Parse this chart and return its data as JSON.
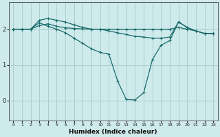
{
  "xlabel": "Humidex (Indice chaleur)",
  "ylabel": "",
  "background_color": "#ceeaea",
  "grid_color": "#aacfcf",
  "line_color": "#1a6b6b",
  "xlim": [
    -0.5,
    23.5
  ],
  "ylim": [
    -0.55,
    2.75
  ],
  "yticks": [
    0,
    1,
    2
  ],
  "xticks": [
    0,
    1,
    2,
    3,
    4,
    5,
    6,
    7,
    8,
    9,
    10,
    11,
    12,
    13,
    14,
    15,
    16,
    17,
    18,
    19,
    20,
    21,
    22,
    23
  ],
  "line1_x": [
    0,
    1,
    2,
    3,
    4,
    5,
    6,
    7,
    8,
    9,
    10,
    11,
    12,
    13,
    14,
    15,
    16,
    17,
    18,
    19,
    20,
    21,
    22,
    23
  ],
  "line1_y": [
    2.0,
    2.0,
    2.0,
    2.1,
    2.15,
    2.08,
    2.04,
    2.02,
    2.01,
    2.0,
    2.0,
    2.0,
    2.0,
    2.0,
    2.0,
    2.0,
    2.0,
    2.0,
    2.0,
    2.05,
    2.0,
    1.95,
    1.88,
    1.88
  ],
  "line2_x": [
    0,
    1,
    2,
    3,
    4,
    5,
    6,
    7,
    8,
    9,
    10,
    11,
    12,
    13,
    14,
    15,
    16,
    17,
    18,
    19,
    20,
    21,
    22,
    23
  ],
  "line2_y": [
    2.0,
    2.0,
    2.0,
    2.25,
    2.3,
    2.25,
    2.2,
    2.12,
    2.05,
    2.0,
    2.0,
    1.95,
    1.9,
    1.85,
    1.8,
    1.78,
    1.75,
    1.75,
    1.78,
    2.2,
    2.05,
    1.95,
    1.88,
    1.88
  ],
  "line3_x": [
    0,
    1,
    2,
    3,
    4,
    5,
    6,
    7,
    8,
    9,
    10,
    11,
    12,
    13,
    14,
    15,
    16,
    17,
    18,
    19,
    20,
    21,
    22,
    23
  ],
  "line3_y": [
    2.0,
    2.0,
    2.0,
    2.18,
    2.08,
    2.0,
    1.9,
    1.75,
    1.6,
    1.45,
    1.35,
    1.3,
    0.55,
    0.03,
    0.02,
    0.22,
    1.15,
    1.55,
    1.68,
    2.2,
    2.05,
    1.95,
    1.88,
    1.88
  ]
}
